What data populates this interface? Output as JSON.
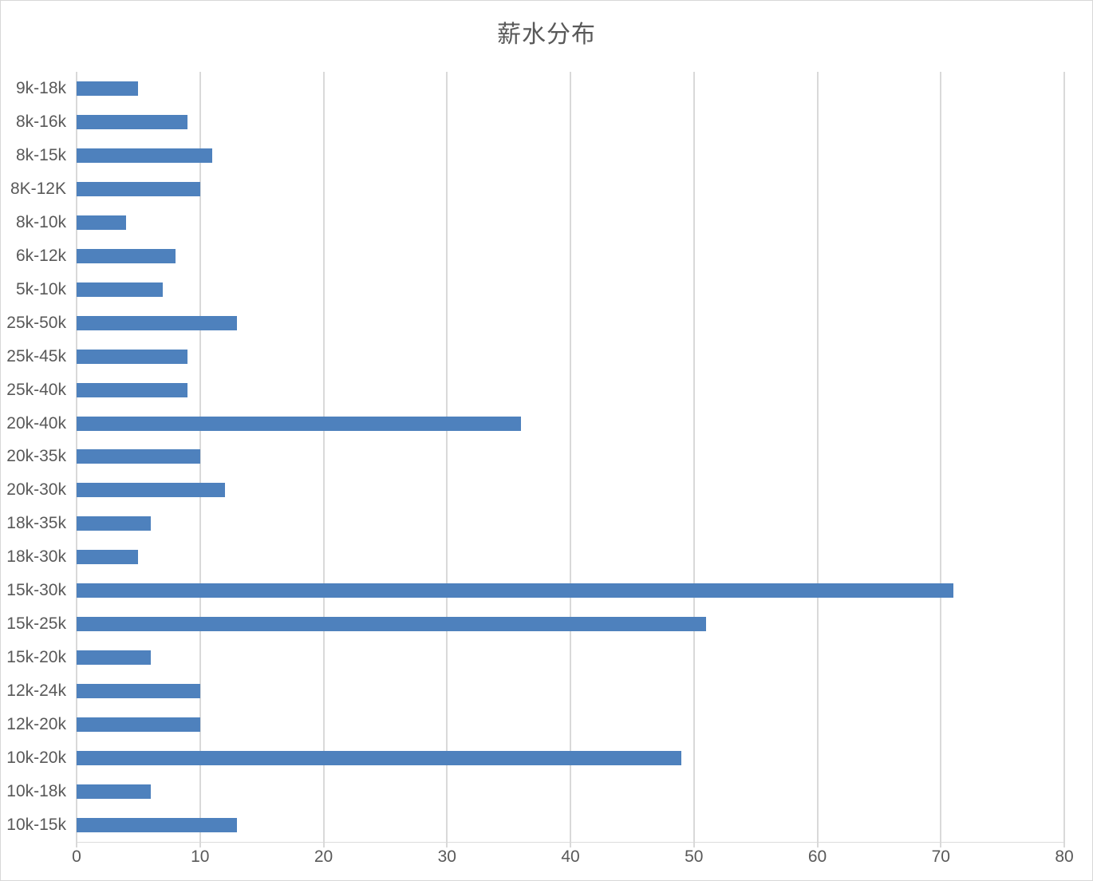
{
  "title": "薪水分布",
  "colors": {
    "bar": "#4E81BD",
    "gridline": "#D9D9D9",
    "axis_line": "#DCDCDC",
    "text": "#595959",
    "background": "#FFFFFF",
    "frame_border": "#D7D7D7"
  },
  "chart_data": {
    "type": "bar",
    "orientation": "horizontal",
    "title": "薪水分布",
    "categories": [
      "9k-18k",
      "8k-16k",
      "8k-15k",
      "8K-12K",
      "8k-10k",
      "6k-12k",
      "5k-10k",
      "25k-50k",
      "25k-45k",
      "25k-40k",
      "20k-40k",
      "20k-35k",
      "20k-30k",
      "18k-35k",
      "18k-30k",
      "15k-30k",
      "15k-25k",
      "15k-20k",
      "12k-24k",
      "12k-20k",
      "10k-20k",
      "10k-18k",
      "10k-15k"
    ],
    "values": [
      5,
      9,
      11,
      10,
      4,
      8,
      7,
      13,
      9,
      9,
      36,
      10,
      12,
      6,
      5,
      71,
      51,
      6,
      10,
      10,
      49,
      6,
      13
    ],
    "xlabel": "",
    "ylabel": "",
    "xlim": [
      0,
      80
    ],
    "xticks": [
      0,
      10,
      20,
      30,
      40,
      50,
      60,
      70,
      80
    ],
    "grid": "vertical-only",
    "legend": "none"
  }
}
